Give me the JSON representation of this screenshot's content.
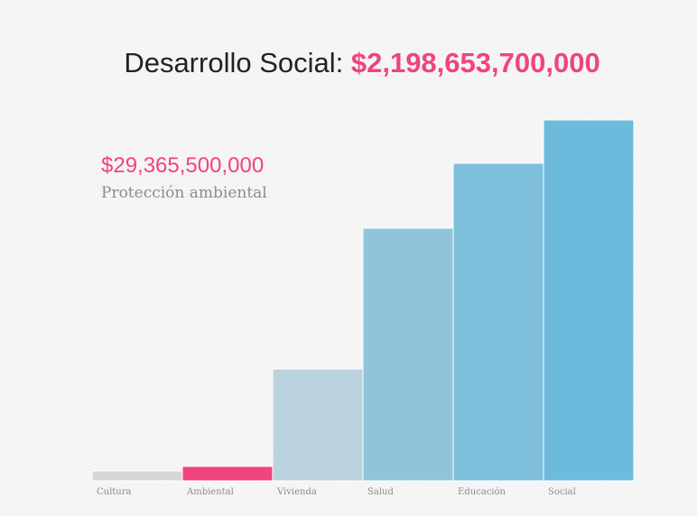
{
  "title": {
    "label": "Desarrollo Social: ",
    "amount": "$2,198,653,700,000"
  },
  "highlight": {
    "value": "$29,365,500,000",
    "label": "Protección ambiental"
  },
  "colors": {
    "accent": "#f0447c",
    "title_text": "#222222",
    "muted_text": "#8c8c8c"
  },
  "chart_data": {
    "type": "bar",
    "categories": [
      "Cultura",
      "Ambiental",
      "Vivienda",
      "Salud",
      "Educación",
      "Social"
    ],
    "values": [
      11,
      16,
      124,
      280,
      352,
      400
    ],
    "ylim": [
      0,
      400
    ],
    "grid": false,
    "legend": "none",
    "highlighted_category": "Ambiental",
    "bar_colors": [
      "#d5d7d7",
      "#f0447c",
      "#bbd3de",
      "#8fc4da",
      "#7ec0db",
      "#6cbbdc"
    ]
  }
}
